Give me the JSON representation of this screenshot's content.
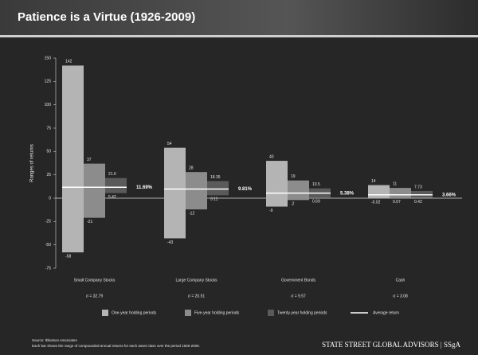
{
  "chart_data": {
    "type": "floating-bar",
    "title": "Patience is a Virtue (1926-2009)",
    "y_label": "Ranges of returns",
    "categories": [
      "Small Company Stocks",
      "Large Company Stocks",
      "Government Bonds",
      "Cash"
    ],
    "category_notes": [
      "σ = 32.79",
      "σ = 20.51",
      "σ = 9.57",
      "σ = 3.08"
    ],
    "series": [
      {
        "name": "One-year holding periods",
        "color": "#b4b4b4",
        "high": [
          142,
          54,
          40,
          14
        ],
        "low": [
          -58,
          -43,
          -9,
          -0.02
        ]
      },
      {
        "name": "Five-year holding periods",
        "color": "#8c8c8c",
        "high": [
          37,
          28,
          19,
          11
        ],
        "low": [
          -21,
          -12,
          -2,
          0.07
        ]
      },
      {
        "name": "Twenty-year holding periods",
        "color": "#5a5a5a",
        "high": [
          21.6,
          18.35,
          10.5,
          7.73
        ],
        "low": [
          5.42,
          3.11,
          0.69,
          0.42
        ]
      }
    ],
    "average": {
      "name": "Average return",
      "color": "#ffffff",
      "values": [
        11.69,
        9.81,
        5.38,
        3.66
      ],
      "value_labels": [
        "11.69%",
        "9.81%",
        "5.38%",
        "3.66%"
      ]
    },
    "ylim": [
      -75,
      150
    ],
    "yticks": [
      -75,
      -50,
      -25,
      0,
      25,
      50,
      75,
      100,
      125,
      150
    ],
    "source": "Source: Ibbotson Associates",
    "note": "Each bar shows the range of compounded annual returns for each asset class over the period 1926-2009.",
    "footer": "STATE STREET GLOBAL ADVISORS | SSgA"
  }
}
